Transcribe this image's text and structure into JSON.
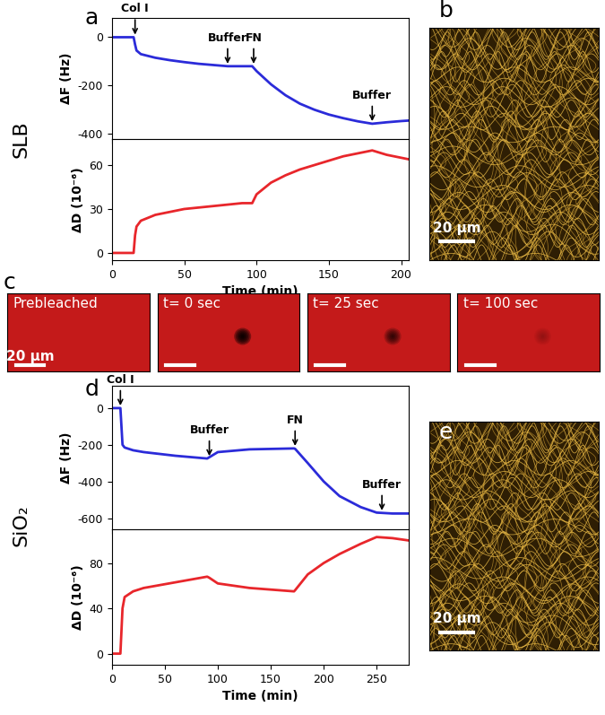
{
  "chart_data": [
    {
      "type": "line",
      "panel": "a",
      "side_label": "SLB",
      "x": [
        0,
        15,
        16,
        17,
        20,
        30,
        40,
        50,
        60,
        70,
        80,
        90,
        97,
        100,
        110,
        120,
        130,
        140,
        150,
        160,
        170,
        180,
        190,
        200,
        205
      ],
      "values": [
        0,
        0,
        -30,
        -55,
        -70,
        -85,
        -95,
        -103,
        -110,
        -115,
        -120,
        -120,
        -120,
        -140,
        -195,
        -240,
        -275,
        -300,
        -320,
        -335,
        -348,
        -358,
        -352,
        -347,
        -345
      ],
      "color": "#2b2bd9",
      "ylabel": "ΔF (Hz)",
      "xlim": [
        0,
        205
      ],
      "xticks": [
        0,
        50,
        100,
        150,
        200
      ],
      "ylim": [
        -420,
        80
      ],
      "yticks": [
        -400,
        -200,
        0
      ],
      "tick_labels": "y",
      "annotations": [
        {
          "text": "Col I",
          "x": 16,
          "y": 0
        },
        {
          "text": "Buffer",
          "x": 80,
          "y": -120
        },
        {
          "text": "FN",
          "x": 98,
          "y": -120
        },
        {
          "text": "Buffer",
          "x": 180,
          "y": -358
        }
      ]
    },
    {
      "type": "line",
      "x": [
        0,
        15,
        16,
        17,
        20,
        30,
        40,
        50,
        60,
        70,
        80,
        90,
        97,
        100,
        110,
        120,
        130,
        140,
        150,
        160,
        170,
        180,
        190,
        200,
        205
      ],
      "values": [
        0,
        0,
        12,
        18,
        22,
        26,
        28,
        30,
        31,
        32,
        33,
        34,
        34,
        40,
        48,
        53,
        57,
        60,
        63,
        66,
        68,
        70,
        67,
        65,
        64
      ],
      "color": "#e8262b",
      "ylabel": "ΔD (10⁻⁶)",
      "xlabel": "Time (min)",
      "xlim": [
        0,
        205
      ],
      "xticks": [
        0,
        50,
        100,
        150,
        200
      ],
      "ylim": [
        -5,
        78
      ],
      "yticks": [
        0,
        30,
        60
      ]
    },
    {
      "type": "line",
      "panel": "d",
      "side_label": "SiO₂",
      "x": [
        0,
        8,
        10,
        12,
        20,
        30,
        60,
        90,
        92,
        100,
        130,
        172,
        173,
        185,
        200,
        215,
        235,
        250,
        265,
        280
      ],
      "values": [
        0,
        0,
        -200,
        -215,
        -230,
        -240,
        -260,
        -275,
        -268,
        -240,
        -225,
        -220,
        -222,
        -300,
        -400,
        -480,
        -540,
        -570,
        -575,
        -575
      ],
      "color": "#2b2bd9",
      "ylabel": "ΔF (Hz)",
      "xlim": [
        0,
        280
      ],
      "xticks": [
        0,
        50,
        100,
        150,
        200,
        250
      ],
      "ylim": [
        -660,
        120
      ],
      "yticks": [
        -600,
        -400,
        -200,
        0
      ],
      "tick_labels": "y",
      "annotations": [
        {
          "text": "Col I",
          "x": 8,
          "y": 0
        },
        {
          "text": "Buffer",
          "x": 92,
          "y": -275
        },
        {
          "text": "FN",
          "x": 173,
          "y": -220
        },
        {
          "text": "Buffer",
          "x": 255,
          "y": -572
        }
      ]
    },
    {
      "type": "line",
      "x": [
        0,
        8,
        10,
        12,
        20,
        30,
        60,
        90,
        92,
        100,
        130,
        172,
        173,
        185,
        200,
        215,
        235,
        250,
        265,
        280
      ],
      "values": [
        0,
        0,
        40,
        50,
        55,
        58,
        63,
        68,
        67,
        62,
        58,
        55,
        56,
        70,
        80,
        88,
        97,
        103,
        102,
        100
      ],
      "color": "#e8262b",
      "ylabel": "ΔD (10⁻⁶)",
      "xlabel": "Time (min)",
      "xlim": [
        0,
        280
      ],
      "xticks": [
        0,
        50,
        100,
        150,
        200,
        250
      ],
      "ylim": [
        -10,
        110
      ],
      "yticks": [
        0,
        40,
        80
      ]
    }
  ],
  "images": [
    {
      "panel": "b",
      "scale_bar": "20 µm"
    },
    {
      "panel": "e",
      "scale_bar": "20 µm"
    }
  ],
  "frap": {
    "panel": "c",
    "frames": [
      "Prebleached",
      "t= 0 sec",
      "t= 25 sec",
      "t= 100 sec"
    ],
    "scale_bar": "20 µm"
  }
}
